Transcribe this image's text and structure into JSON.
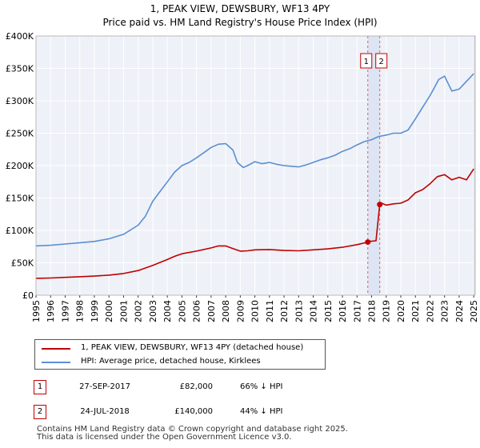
{
  "chart_data": {
    "type": "line",
    "title": "1, PEAK VIEW, DEWSBURY, WF13 4PY",
    "subtitle": "Price paid vs. HM Land Registry's House Price Index (HPI)",
    "xlabel": "",
    "ylabel": "",
    "xlim": [
      1995,
      2025.1
    ],
    "ylim": [
      0,
      400000
    ],
    "yticks": [
      0,
      50000,
      100000,
      150000,
      200000,
      250000,
      300000,
      350000,
      400000
    ],
    "ytick_labels": [
      "£0",
      "£50K",
      "£100K",
      "£150K",
      "£200K",
      "£250K",
      "£300K",
      "£350K",
      "£400K"
    ],
    "xticks": [
      "1995",
      "1996",
      "1997",
      "1998",
      "1999",
      "2000",
      "2001",
      "2002",
      "2003",
      "2004",
      "2005",
      "2006",
      "2007",
      "2008",
      "2009",
      "2010",
      "2011",
      "2012",
      "2013",
      "2014",
      "2015",
      "2016",
      "2017",
      "2018",
      "2019",
      "2020",
      "2021",
      "2022",
      "2023",
      "2024",
      "2025"
    ],
    "grid": true,
    "series": [
      {
        "name": "1, PEAK VIEW, DEWSBURY, WF13 4PY (detached house)",
        "color": "#c00000",
        "x": [
          1995,
          1996,
          1997,
          1998,
          1999,
          2000,
          2001,
          2002,
          2003,
          2004,
          2004.5,
          2005,
          2006,
          2007,
          2007.5,
          2008,
          2008.5,
          2009,
          2009.5,
          2010,
          2011,
          2012,
          2013,
          2014,
          2015,
          2016,
          2017,
          2017.74,
          2017.8,
          2018.3,
          2018.56,
          2018.6,
          2019,
          2019.5,
          2020,
          2020.5,
          2021,
          2021.5,
          2022,
          2022.5,
          2023,
          2023.5,
          2024,
          2024.5,
          2025
        ],
        "y": [
          26000,
          26500,
          27500,
          28500,
          29500,
          31000,
          33500,
          38000,
          46000,
          55000,
          60000,
          64000,
          68000,
          73000,
          76000,
          76000,
          72000,
          68000,
          68500,
          70000,
          70500,
          69000,
          68500,
          70000,
          71500,
          74000,
          78000,
          82000,
          83000,
          84000,
          140000,
          143000,
          139000,
          141000,
          142000,
          147000,
          158000,
          163000,
          172000,
          183000,
          186000,
          178000,
          182000,
          178000,
          195000
        ]
      },
      {
        "name": "HPI: Average price, detached house, Kirklees",
        "color": "#5b8fd1",
        "x": [
          1995,
          1996,
          1997,
          1998,
          1999,
          2000,
          2001,
          2002,
          2002.5,
          2003,
          2003.5,
          2004,
          2004.5,
          2005,
          2005.5,
          2006,
          2006.5,
          2007,
          2007.5,
          2008,
          2008.5,
          2008.8,
          2009.2,
          2009.5,
          2010,
          2010.5,
          2011,
          2011.5,
          2012,
          2012.5,
          2013,
          2013.5,
          2014,
          2014.5,
          2015,
          2015.5,
          2016,
          2016.5,
          2017,
          2017.5,
          2018,
          2018.5,
          2019,
          2019.5,
          2020,
          2020.5,
          2021,
          2021.5,
          2022,
          2022.3,
          2022.6,
          2023,
          2023.5,
          2024,
          2024.5,
          2025
        ],
        "y": [
          76000,
          77000,
          79000,
          81000,
          83000,
          87000,
          94000,
          108000,
          122000,
          145000,
          160000,
          175000,
          190000,
          200000,
          205000,
          212000,
          220000,
          228000,
          233000,
          234000,
          224000,
          205000,
          197000,
          200000,
          206000,
          203000,
          205000,
          202000,
          200000,
          199000,
          198000,
          201000,
          205000,
          209000,
          212000,
          216000,
          222000,
          226000,
          232000,
          237000,
          240000,
          245000,
          247000,
          250000,
          250000,
          255000,
          272000,
          290000,
          308000,
          320000,
          333000,
          338000,
          315000,
          318000,
          330000,
          342000
        ]
      }
    ],
    "markers": [
      {
        "label": "1",
        "x": 2017.74,
        "y": 82000
      },
      {
        "label": "2",
        "x": 2018.56,
        "y": 140000
      }
    ]
  },
  "legend": {
    "items": [
      {
        "label": "1, PEAK VIEW, DEWSBURY, WF13 4PY (detached house)",
        "color": "#c00000"
      },
      {
        "label": "HPI: Average price, detached house, Kirklees",
        "color": "#5b8fd1"
      }
    ]
  },
  "transactions": [
    {
      "id": "1",
      "date": "27-SEP-2017",
      "price": "£82,000",
      "hpi": "66% ↓ HPI"
    },
    {
      "id": "2",
      "date": "24-JUL-2018",
      "price": "£140,000",
      "hpi": "44% ↓ HPI"
    }
  ],
  "footer": {
    "line1": "Contains HM Land Registry data © Crown copyright and database right 2025.",
    "line2": "This data is licensed under the Open Government Licence v3.0."
  }
}
